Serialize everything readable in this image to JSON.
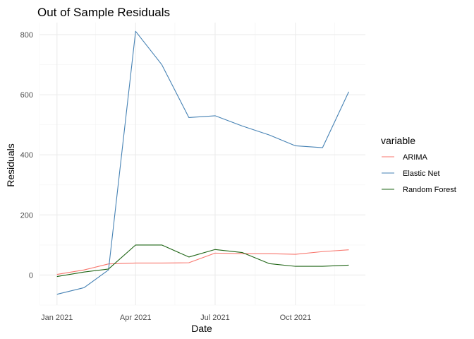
{
  "chart_data": {
    "type": "line",
    "title": "Out of Sample Residuals",
    "xlabel": "Date",
    "ylabel": "Residuals",
    "x": [
      "2021-01-01",
      "2021-02-01",
      "2021-03-01",
      "2021-04-01",
      "2021-05-01",
      "2021-06-01",
      "2021-07-01",
      "2021-08-01",
      "2021-09-01",
      "2021-10-01",
      "2021-11-01",
      "2021-12-01"
    ],
    "series": [
      {
        "name": "ARIMA",
        "color": "#F8766D",
        "values": [
          2,
          17,
          37,
          40,
          40,
          41,
          73,
          71,
          71,
          69,
          78,
          84
        ]
      },
      {
        "name": "Elastic Net",
        "color": "#4682B4",
        "values": [
          -64,
          -42,
          17,
          811,
          700,
          524,
          530,
          496,
          466,
          430,
          424,
          610
        ]
      },
      {
        "name": "Random Forest",
        "color": "#1E6414",
        "values": [
          -5,
          10,
          20,
          100,
          100,
          60,
          85,
          75,
          38,
          29,
          29,
          33
        ]
      }
    ],
    "xticks": [
      {
        "date": "2021-01-01",
        "label": "Jan 2021"
      },
      {
        "date": "2021-04-01",
        "label": "Apr 2021"
      },
      {
        "date": "2021-07-01",
        "label": "Jul 2021"
      },
      {
        "date": "2021-10-01",
        "label": "Oct 2021"
      }
    ],
    "xlim": [
      "2020-12-12",
      "2021-12-20"
    ],
    "yticks": [
      0,
      200,
      400,
      600,
      800
    ],
    "ylim": [
      -100,
      840
    ],
    "grid": true,
    "legend": {
      "title": "variable",
      "position": "right"
    }
  }
}
